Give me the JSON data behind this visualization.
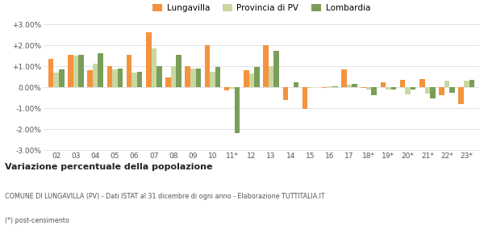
{
  "categories": [
    "02",
    "03",
    "04",
    "05",
    "06",
    "07",
    "08",
    "09",
    "10",
    "11*",
    "12",
    "13",
    "14",
    "15",
    "16",
    "17",
    "18*",
    "19*",
    "20*",
    "21*",
    "22*",
    "23*"
  ],
  "lungavilla": [
    1.35,
    1.55,
    0.8,
    1.0,
    1.55,
    2.6,
    0.45,
    1.0,
    2.0,
    -0.15,
    0.8,
    2.0,
    -0.6,
    -1.05,
    -0.05,
    0.85,
    -0.05,
    0.25,
    0.35,
    0.4,
    -0.4,
    -0.8
  ],
  "provincia_pv": [
    0.7,
    1.5,
    1.1,
    0.85,
    0.7,
    1.85,
    1.0,
    0.9,
    0.75,
    -0.08,
    0.65,
    1.0,
    0.0,
    -0.05,
    0.05,
    0.1,
    -0.12,
    -0.1,
    -0.35,
    -0.3,
    0.3,
    0.32
  ],
  "lombardia": [
    0.85,
    1.55,
    1.6,
    0.9,
    0.75,
    1.0,
    1.55,
    0.88,
    0.95,
    -2.2,
    0.95,
    1.75,
    0.25,
    0.0,
    0.05,
    0.15,
    -0.4,
    -0.1,
    -0.12,
    -0.55,
    -0.25,
    0.35
  ],
  "color_lungavilla": "#f5923e",
  "color_provincia": "#c8d8a0",
  "color_lombardia": "#7a9e5a",
  "title_bold": "Variazione percentuale della popolazione",
  "subtitle": "COMUNE DI LUNGAVILLA (PV) - Dati ISTAT al 31 dicembre di ogni anno - Elaborazione TUTTITALIA.IT",
  "footnote": "(*) post-censimento",
  "legend_labels": [
    "Lungavilla",
    "Provincia di PV",
    "Lombardia"
  ],
  "ylim": [
    -3.0,
    3.0
  ],
  "yticks": [
    -3.0,
    -2.0,
    -1.0,
    0.0,
    1.0,
    2.0,
    3.0
  ],
  "ytick_labels": [
    "-3.00%",
    "-2.00%",
    "-1.00%",
    "0.00%",
    "+1.00%",
    "+2.00%",
    "+3.00%"
  ],
  "background_color": "#ffffff",
  "grid_color": "#dddddd"
}
